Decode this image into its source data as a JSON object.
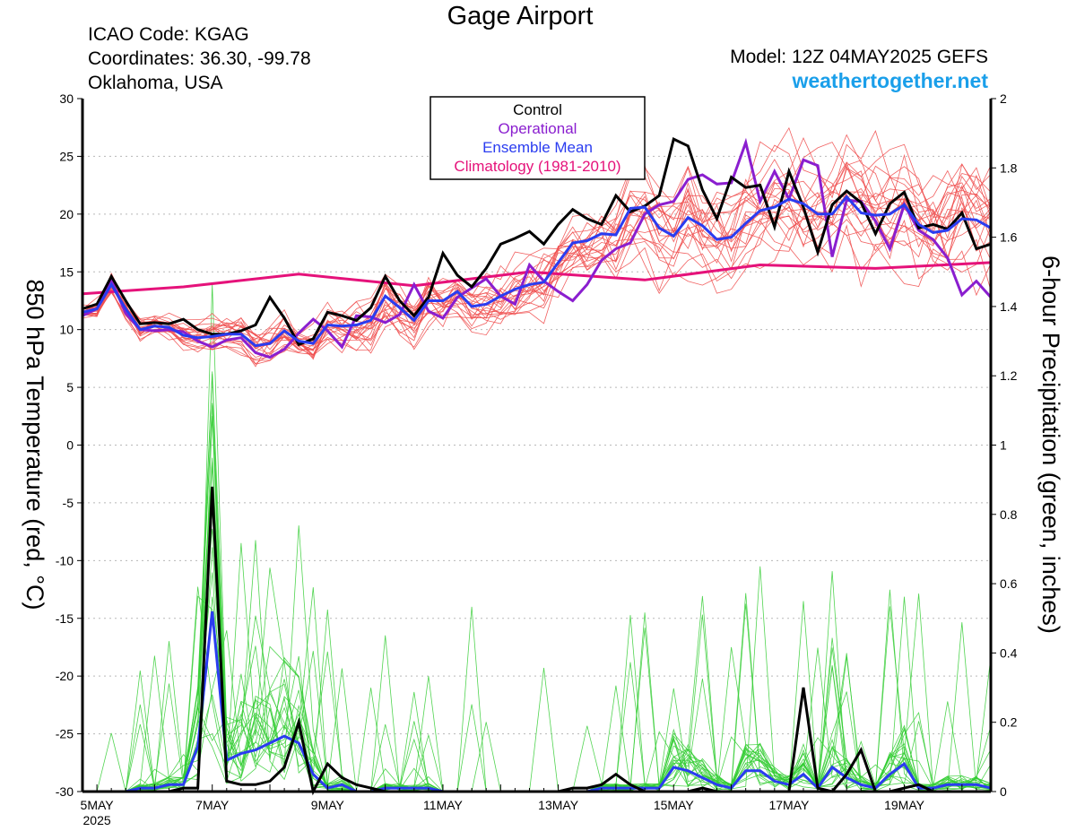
{
  "header": {
    "title": "Gage Airport",
    "icao": "ICAO Code: KGAG",
    "coordinates": "Coordinates: 36.30, -99.78",
    "location": "Oklahoma, USA",
    "model": "Model: 12Z 04MAY2025 GEFS",
    "site": "weathertogether.net"
  },
  "colors": {
    "control": "#000000",
    "operational": "#8a1ecf",
    "ensemble_mean": "#2a3cf0",
    "climatology": "#e5127a",
    "members_temp": "#f05050",
    "members_precip": "#33cc33",
    "site": "#1a9fea"
  },
  "chart_data": {
    "type": "line",
    "left_axis_label": "850 hPa Temperature (red, °C)",
    "right_axis_label": "6-hour Precipitation (green, inches)",
    "left_ylim": [
      -30,
      30
    ],
    "right_ylim": [
      0,
      2
    ],
    "left_ticks": [
      30,
      25,
      20,
      15,
      10,
      5,
      0,
      -5,
      -10,
      -15,
      -20,
      -25,
      -30
    ],
    "right_ticks": [
      2,
      1.8,
      1.6,
      1.4,
      1.2,
      1,
      0.8,
      0.6,
      0.4,
      0.2,
      0
    ],
    "x_axis": {
      "unit": "days since 00Z 05MAY2025",
      "range": [
        -0.25,
        15.5
      ],
      "tick_labels": [
        {
          "day": 0,
          "label": "5MAY",
          "sub": "2025"
        },
        {
          "day": 2,
          "label": "7MAY"
        },
        {
          "day": 4,
          "label": "9MAY"
        },
        {
          "day": 6,
          "label": "11MAY"
        },
        {
          "day": 8,
          "label": "13MAY"
        },
        {
          "day": 10,
          "label": "15MAY"
        },
        {
          "day": 12,
          "label": "17MAY"
        },
        {
          "day": 14,
          "label": "19MAY"
        }
      ]
    },
    "grid": "horizontal dotted",
    "legend": {
      "placement": "top-center",
      "entries": [
        {
          "label": "Control",
          "color": "#000000"
        },
        {
          "label": "Operational",
          "color": "#8a1ecf"
        },
        {
          "label": "Ensemble Mean",
          "color": "#2a3cf0"
        },
        {
          "label": "Climatology (1981-2010)",
          "color": "#e5127a"
        }
      ]
    },
    "series": {
      "climatology_temp": {
        "x": [
          -0.25,
          1.5,
          3.5,
          5.5,
          7.5,
          9.5,
          11.5,
          13.5,
          15.5
        ],
        "y": [
          13.1,
          13.7,
          14.8,
          13.8,
          15.0,
          14.3,
          15.6,
          15.3,
          15.8
        ]
      },
      "control_temp": {
        "x": [
          -0.25,
          0,
          0.25,
          0.5,
          0.75,
          1,
          1.25,
          1.5,
          1.75,
          2,
          2.25,
          2.5,
          2.75,
          3,
          3.25,
          3.5,
          3.75,
          4,
          4.25,
          4.5,
          4.75,
          5,
          5.25,
          5.5,
          5.75,
          6,
          6.25,
          6.5,
          6.75,
          7,
          7.25,
          7.5,
          7.75,
          8,
          8.25,
          8.5,
          8.75,
          9,
          9.25,
          9.5,
          9.75,
          10,
          10.25,
          10.5,
          10.75,
          11,
          11.25,
          11.5,
          11.75,
          12,
          12.25,
          12.5,
          12.75,
          13,
          13.25,
          13.5,
          13.75,
          14,
          14.25,
          14.5,
          14.75,
          15,
          15.25,
          15.5
        ],
        "y": [
          11.8,
          12.2,
          14.6,
          12.5,
          10.5,
          10.6,
          10.5,
          10.9,
          10.0,
          9.6,
          9.6,
          9.9,
          10.4,
          12.8,
          11.0,
          8.7,
          9.2,
          11.5,
          11.2,
          10.8,
          11.9,
          14.6,
          12.5,
          11.2,
          12.8,
          16.6,
          14.7,
          13.7,
          15.3,
          17.4,
          17.9,
          18.5,
          17.4,
          19.1,
          20.4,
          19.6,
          19.1,
          21.6,
          20.2,
          20.7,
          21.6,
          26.5,
          25.9,
          22.1,
          19.6,
          23.2,
          22.3,
          22.5,
          18.9,
          23.7,
          20.6,
          16.7,
          20.8,
          22.0,
          21.0,
          18.3,
          20.9,
          21.9,
          18.8,
          19.1,
          18.7,
          20.1,
          17.0,
          17.4
        ]
      },
      "operational_temp": {
        "x": [
          -0.25,
          0,
          0.25,
          0.5,
          0.75,
          1,
          1.25,
          1.5,
          1.75,
          2,
          2.25,
          2.5,
          2.75,
          3,
          3.25,
          3.5,
          3.75,
          4,
          4.25,
          4.5,
          4.75,
          5,
          5.25,
          5.5,
          5.75,
          6,
          6.25,
          6.5,
          6.75,
          7,
          7.25,
          7.5,
          7.75,
          8,
          8.25,
          8.5,
          8.75,
          9,
          9.25,
          9.5,
          9.75,
          10,
          10.25,
          10.5,
          10.75,
          11,
          11.25,
          11.5,
          11.75,
          12,
          12.25,
          12.5,
          12.75,
          13,
          13.25,
          13.5,
          13.75,
          14,
          14.25,
          14.5,
          14.75,
          15,
          15.25,
          15.5
        ],
        "y": [
          11.2,
          11.8,
          14.3,
          11.4,
          10.0,
          9.9,
          10.0,
          9.8,
          9.0,
          8.5,
          9.1,
          9.3,
          8.0,
          7.6,
          8.3,
          9.7,
          10.9,
          9.9,
          8.5,
          11.2,
          11.1,
          10.6,
          11.3,
          13.9,
          11.6,
          11.0,
          12.8,
          13.6,
          14.4,
          12.9,
          12.2,
          15.6,
          14.2,
          13.3,
          12.5,
          13.9,
          16.0,
          17.0,
          17.5,
          20.0,
          20.8,
          21.1,
          23.0,
          23.4,
          22.6,
          22.7,
          26.2,
          21.1,
          23.7,
          21.3,
          24.7,
          24.2,
          16.3,
          21.2,
          21.1,
          19.4,
          17.0,
          20.8,
          18.6,
          17.8,
          16.2,
          13.0,
          14.2,
          12.8
        ]
      },
      "ensemble_mean_temp": {
        "x": [
          -0.25,
          0,
          0.25,
          0.5,
          0.75,
          1,
          1.25,
          1.5,
          1.75,
          2,
          2.25,
          2.5,
          2.75,
          3,
          3.25,
          3.5,
          3.75,
          4,
          4.25,
          4.5,
          4.75,
          5,
          5.25,
          5.5,
          5.75,
          6,
          6.25,
          6.5,
          6.75,
          7,
          7.25,
          7.5,
          7.75,
          8,
          8.25,
          8.5,
          8.75,
          9,
          9.25,
          9.5,
          9.75,
          10,
          10.25,
          10.5,
          10.75,
          11,
          11.25,
          11.5,
          11.75,
          12,
          12.25,
          12.5,
          12.75,
          13,
          13.25,
          13.5,
          13.75,
          14,
          14.25,
          14.5,
          14.75,
          15,
          15.25,
          15.5
        ],
        "y": [
          11.5,
          11.8,
          13.9,
          11.8,
          10.0,
          10.3,
          10.2,
          9.5,
          9.3,
          9.4,
          9.6,
          9.6,
          8.6,
          8.8,
          9.9,
          9.0,
          8.8,
          10.4,
          10.3,
          10.4,
          10.8,
          12.9,
          11.9,
          10.8,
          12.5,
          12.5,
          13.3,
          12.0,
          12.2,
          12.9,
          13.5,
          13.9,
          14.1,
          15.8,
          17.5,
          17.7,
          18.3,
          18.2,
          20.5,
          20.6,
          18.8,
          18.1,
          19.7,
          19.0,
          17.8,
          18.0,
          19.2,
          20.3,
          20.6,
          21.3,
          20.9,
          20.0,
          20.0,
          21.5,
          20.1,
          19.9,
          20.0,
          20.8,
          19.1,
          18.4,
          18.6,
          19.6,
          19.5,
          18.8
        ]
      },
      "control_precip": {
        "x": [
          -0.25,
          0,
          0.25,
          0.5,
          0.75,
          1,
          1.25,
          1.5,
          1.75,
          2,
          2.25,
          2.5,
          2.75,
          3,
          3.25,
          3.5,
          3.75,
          4,
          4.25,
          4.5,
          4.75,
          5,
          5.25,
          5.5,
          5.75,
          6,
          6.25,
          6.5,
          6.75,
          7,
          7.25,
          7.5,
          7.75,
          8,
          8.25,
          8.5,
          8.75,
          9,
          9.25,
          9.5,
          9.75,
          10,
          10.25,
          10.5,
          10.75,
          11,
          11.25,
          11.5,
          11.75,
          12,
          12.25,
          12.5,
          12.75,
          13,
          13.25,
          13.5,
          13.75,
          14,
          14.25,
          14.5,
          14.75,
          15,
          15.25,
          15.5
        ],
        "y": [
          0,
          0,
          0,
          0,
          0,
          0,
          0,
          0.01,
          0.01,
          0.88,
          0.03,
          0.02,
          0.02,
          0.03,
          0.07,
          0.2,
          0,
          0.08,
          0.04,
          0.02,
          0.01,
          0,
          0,
          0,
          0,
          0,
          0,
          0,
          0,
          0,
          0,
          0,
          0,
          0,
          0.01,
          0.01,
          0.02,
          0.05,
          0.02,
          0,
          0,
          0,
          0,
          0.01,
          0,
          0,
          0,
          0,
          0,
          0,
          0.3,
          0.01,
          0,
          0.05,
          0.12,
          0,
          0,
          0.01,
          0.02,
          0,
          0,
          0,
          0,
          0
        ]
      },
      "ensemble_mean_precip": {
        "x": [
          -0.25,
          0,
          0.25,
          0.5,
          0.75,
          1,
          1.25,
          1.5,
          1.75,
          2,
          2.25,
          2.5,
          2.75,
          3,
          3.25,
          3.5,
          3.75,
          4,
          4.25,
          4.5,
          4.75,
          5,
          5.25,
          5.5,
          5.75,
          6,
          6.25,
          6.5,
          6.75,
          7,
          7.25,
          7.5,
          7.75,
          8,
          8.25,
          8.5,
          8.75,
          9,
          9.25,
          9.5,
          9.75,
          10,
          10.25,
          10.5,
          10.75,
          11,
          11.25,
          11.5,
          11.75,
          12,
          12.25,
          12.5,
          12.75,
          13,
          13.25,
          13.5,
          13.75,
          14,
          14.25,
          14.5,
          14.75,
          15,
          15.25,
          15.5
        ],
        "y": [
          0,
          0,
          0,
          0,
          0.01,
          0.01,
          0.02,
          0.02,
          0.13,
          0.52,
          0.09,
          0.11,
          0.12,
          0.14,
          0.16,
          0.14,
          0.05,
          0.01,
          0.02,
          0,
          0,
          0.01,
          0.01,
          0.01,
          0.01,
          0,
          0,
          0,
          0,
          0,
          0,
          0,
          0,
          0,
          0,
          0,
          0.01,
          0.01,
          0.01,
          0.01,
          0.01,
          0.07,
          0.06,
          0.04,
          0.02,
          0.01,
          0.06,
          0.06,
          0.03,
          0.02,
          0.05,
          0.01,
          0.07,
          0.04,
          0.02,
          0.01,
          0.05,
          0.08,
          0.01,
          0.01,
          0.02,
          0.02,
          0.02,
          0.01
        ]
      }
    }
  }
}
